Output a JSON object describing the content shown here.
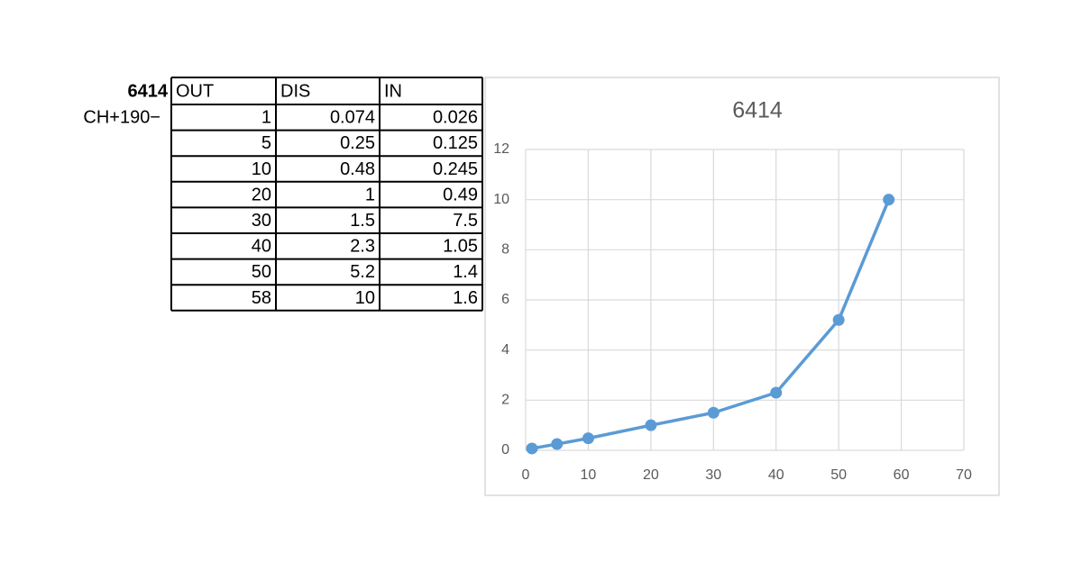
{
  "table": {
    "label": "6414",
    "sublabel": "CH+190−",
    "header": [
      "OUT",
      "DIS",
      "IN"
    ],
    "rows": [
      [
        1,
        0.074,
        0.026
      ],
      [
        5,
        0.25,
        0.125
      ],
      [
        10,
        0.48,
        0.245
      ],
      [
        20,
        1,
        0.49
      ],
      [
        30,
        1.5,
        7.5
      ],
      [
        40,
        2.3,
        1.05
      ],
      [
        50,
        5.2,
        1.4
      ],
      [
        58,
        10,
        1.6
      ]
    ]
  },
  "chart_data": {
    "type": "line",
    "title": "6414",
    "x": [
      1,
      5,
      10,
      20,
      30,
      40,
      50,
      58
    ],
    "values": [
      0.074,
      0.25,
      0.48,
      1,
      1.5,
      2.3,
      5.2,
      10
    ],
    "color": "#5b9bd5",
    "xlim": [
      0,
      70
    ],
    "xticks": [
      0,
      10,
      20,
      30,
      40,
      50,
      60,
      70
    ],
    "ylim": [
      0,
      12
    ],
    "yticks": [
      0,
      2,
      4,
      6,
      8,
      10,
      12
    ],
    "grid": true
  }
}
